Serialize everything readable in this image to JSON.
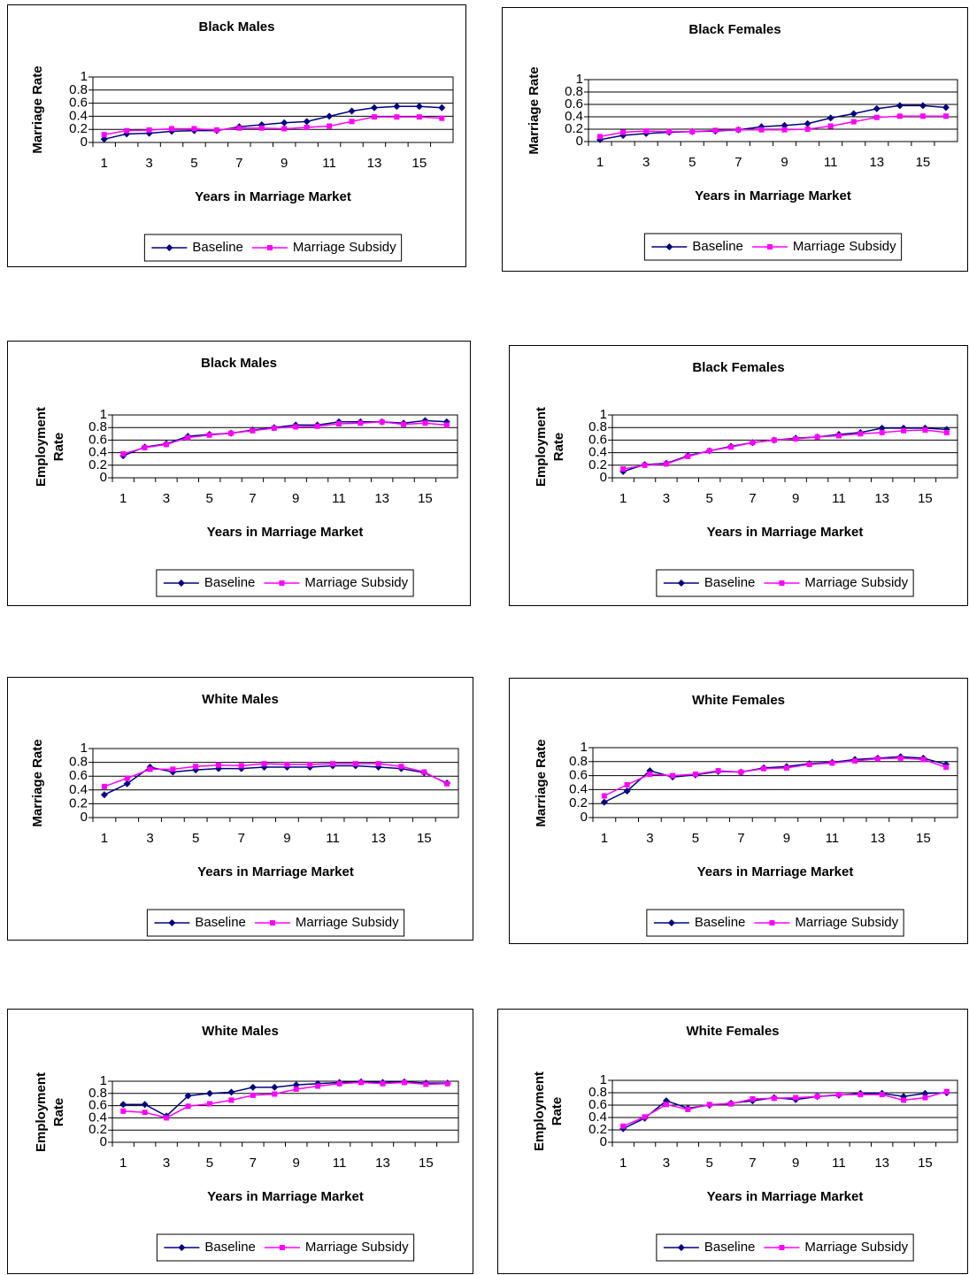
{
  "chart_data": [
    {
      "type": "line",
      "title": "Black Males",
      "ylabel": "Marriage Rate",
      "xlabel": "Years in Marriage Market",
      "categories": [
        "1",
        null,
        "3",
        null,
        "5",
        null,
        "7",
        null,
        "9",
        null,
        "11",
        null,
        "13",
        null,
        "15",
        null
      ],
      "series": [
        {
          "name": "Baseline",
          "color": "#000080",
          "marker": "diamond",
          "values": [
            0.05,
            0.13,
            0.14,
            0.17,
            0.18,
            0.18,
            0.24,
            0.27,
            0.3,
            0.32,
            0.4,
            0.48,
            0.53,
            0.55,
            0.55,
            0.53
          ]
        },
        {
          "name": "Marriage Subsidy",
          "color": "#ff00ff",
          "marker": "square",
          "values": [
            0.12,
            0.18,
            0.19,
            0.21,
            0.21,
            0.19,
            0.22,
            0.22,
            0.21,
            0.23,
            0.25,
            0.32,
            0.39,
            0.39,
            0.39,
            0.37
          ]
        }
      ],
      "ylim": [
        0,
        1
      ],
      "yticks": [
        0,
        0.2,
        0.4,
        0.6,
        0.8,
        1
      ],
      "grid": true
    },
    {
      "type": "line",
      "title": "Black Females",
      "ylabel": "Marriage Rate",
      "xlabel": "Years in Marriage Market",
      "categories": [
        "1",
        null,
        "3",
        null,
        "5",
        null,
        "7",
        null,
        "9",
        null,
        "11",
        null,
        "13",
        null,
        "15",
        null
      ],
      "series": [
        {
          "name": "Baseline",
          "color": "#000080",
          "marker": "diamond",
          "values": [
            0.03,
            0.1,
            0.13,
            0.15,
            0.16,
            0.17,
            0.19,
            0.24,
            0.26,
            0.29,
            0.38,
            0.45,
            0.53,
            0.58,
            0.58,
            0.55
          ]
        },
        {
          "name": "Marriage Subsidy",
          "color": "#ff00ff",
          "marker": "square",
          "values": [
            0.08,
            0.15,
            0.17,
            0.16,
            0.16,
            0.18,
            0.19,
            0.19,
            0.19,
            0.2,
            0.25,
            0.32,
            0.39,
            0.41,
            0.41,
            0.41
          ]
        }
      ],
      "ylim": [
        0,
        1
      ],
      "yticks": [
        0,
        0.2,
        0.4,
        0.6,
        0.8,
        1
      ],
      "grid": true
    },
    {
      "type": "line",
      "title": "Black Males",
      "ylabel": "Employment Rate",
      "xlabel": "Years in Marriage Market",
      "categories": [
        "1",
        null,
        "3",
        null,
        "5",
        null,
        "7",
        null,
        "9",
        null,
        "11",
        null,
        "13",
        null,
        "15",
        null
      ],
      "series": [
        {
          "name": "Baseline",
          "color": "#000080",
          "marker": "diamond",
          "values": [
            0.35,
            0.49,
            0.54,
            0.66,
            0.69,
            0.71,
            0.76,
            0.8,
            0.84,
            0.84,
            0.89,
            0.89,
            0.89,
            0.87,
            0.91,
            0.89
          ]
        },
        {
          "name": "Marriage Subsidy",
          "color": "#ff00ff",
          "marker": "square",
          "values": [
            0.38,
            0.48,
            0.53,
            0.64,
            0.68,
            0.71,
            0.75,
            0.79,
            0.81,
            0.82,
            0.86,
            0.87,
            0.89,
            0.85,
            0.87,
            0.84
          ]
        }
      ],
      "ylim": [
        0,
        1
      ],
      "yticks": [
        0,
        0.2,
        0.4,
        0.6,
        0.8,
        1
      ],
      "grid": true
    },
    {
      "type": "line",
      "title": "Black Females",
      "ylabel": "Employment Rate",
      "xlabel": "Years in Marriage Market",
      "categories": [
        "1",
        null,
        "3",
        null,
        "5",
        null,
        "7",
        null,
        "9",
        null,
        "11",
        null,
        "13",
        null,
        "15",
        null
      ],
      "series": [
        {
          "name": "Baseline",
          "color": "#000080",
          "marker": "diamond",
          "values": [
            0.1,
            0.21,
            0.23,
            0.35,
            0.43,
            0.5,
            0.56,
            0.6,
            0.63,
            0.65,
            0.69,
            0.72,
            0.79,
            0.79,
            0.79,
            0.77
          ]
        },
        {
          "name": "Marriage Subsidy",
          "color": "#ff00ff",
          "marker": "square",
          "values": [
            0.14,
            0.2,
            0.22,
            0.34,
            0.43,
            0.49,
            0.56,
            0.6,
            0.62,
            0.65,
            0.67,
            0.7,
            0.72,
            0.75,
            0.76,
            0.72
          ]
        }
      ],
      "ylim": [
        0,
        1
      ],
      "yticks": [
        0,
        0.2,
        0.4,
        0.6,
        0.8,
        1
      ],
      "grid": true
    },
    {
      "type": "line",
      "title": "White Males",
      "ylabel": "Marriage Rate",
      "xlabel": "Years in Marriage Market",
      "categories": [
        "1",
        null,
        "3",
        null,
        "5",
        null,
        "7",
        null,
        "9",
        null,
        "11",
        null,
        "13",
        null,
        "15",
        null
      ],
      "series": [
        {
          "name": "Baseline",
          "color": "#000080",
          "marker": "diamond",
          "values": [
            0.33,
            0.49,
            0.73,
            0.66,
            0.69,
            0.71,
            0.71,
            0.73,
            0.73,
            0.73,
            0.75,
            0.75,
            0.73,
            0.71,
            0.65,
            0.5
          ]
        },
        {
          "name": "Marriage Subsidy",
          "color": "#ff00ff",
          "marker": "square",
          "values": [
            0.45,
            0.57,
            0.7,
            0.7,
            0.74,
            0.76,
            0.75,
            0.78,
            0.77,
            0.77,
            0.78,
            0.78,
            0.78,
            0.74,
            0.66,
            0.49
          ]
        }
      ],
      "ylim": [
        0,
        1
      ],
      "yticks": [
        0,
        0.2,
        0.4,
        0.6,
        0.8,
        1
      ],
      "grid": true
    },
    {
      "type": "line",
      "title": "White Females",
      "ylabel": "Marriage Rate",
      "xlabel": "Years in Marriage Market",
      "categories": [
        "1",
        null,
        "3",
        null,
        "5",
        null,
        "7",
        null,
        "9",
        null,
        "11",
        null,
        "13",
        null,
        "15",
        null
      ],
      "series": [
        {
          "name": "Baseline",
          "color": "#000080",
          "marker": "diamond",
          "values": [
            0.22,
            0.38,
            0.67,
            0.58,
            0.61,
            0.66,
            0.65,
            0.71,
            0.73,
            0.77,
            0.79,
            0.83,
            0.85,
            0.87,
            0.85,
            0.76
          ]
        },
        {
          "name": "Marriage Subsidy",
          "color": "#ff00ff",
          "marker": "square",
          "values": [
            0.31,
            0.47,
            0.62,
            0.6,
            0.62,
            0.67,
            0.65,
            0.7,
            0.71,
            0.76,
            0.78,
            0.81,
            0.84,
            0.85,
            0.83,
            0.72
          ]
        }
      ],
      "ylim": [
        0,
        1
      ],
      "yticks": [
        0,
        0.2,
        0.4,
        0.6,
        0.8,
        1
      ],
      "grid": true
    },
    {
      "type": "line",
      "title": "White Males",
      "ylabel": "Employment Rate",
      "xlabel": "Years in Marriage Market",
      "categories": [
        "1",
        null,
        "3",
        null,
        "5",
        null,
        "7",
        null,
        "9",
        null,
        "11",
        null,
        "13",
        null,
        "15",
        null
      ],
      "series": [
        {
          "name": "Baseline",
          "color": "#000080",
          "marker": "diamond",
          "values": [
            0.62,
            0.62,
            0.43,
            0.76,
            0.8,
            0.82,
            0.9,
            0.9,
            0.94,
            0.96,
            0.98,
            0.99,
            0.98,
            0.99,
            0.97,
            0.97
          ]
        },
        {
          "name": "Marriage Subsidy",
          "color": "#ff00ff",
          "marker": "square",
          "values": [
            0.51,
            0.49,
            0.4,
            0.59,
            0.63,
            0.69,
            0.77,
            0.79,
            0.87,
            0.92,
            0.96,
            0.98,
            0.96,
            0.98,
            0.95,
            0.96
          ]
        }
      ],
      "ylim": [
        0,
        1
      ],
      "yticks": [
        0,
        0.2,
        0.4,
        0.6,
        0.8,
        1
      ],
      "grid": true
    },
    {
      "type": "line",
      "title": "White Females",
      "ylabel": "Employment Rate",
      "xlabel": "Years in Marriage Market",
      "categories": [
        "1",
        null,
        "3",
        null,
        "5",
        null,
        "7",
        null,
        "9",
        null,
        "11",
        null,
        "13",
        null,
        "15",
        null
      ],
      "series": [
        {
          "name": "Baseline",
          "color": "#000080",
          "marker": "diamond",
          "values": [
            0.22,
            0.39,
            0.67,
            0.55,
            0.6,
            0.63,
            0.67,
            0.72,
            0.69,
            0.74,
            0.76,
            0.79,
            0.79,
            0.74,
            0.79,
            0.8
          ]
        },
        {
          "name": "Marriage Subsidy",
          "color": "#ff00ff",
          "marker": "square",
          "values": [
            0.26,
            0.41,
            0.61,
            0.53,
            0.61,
            0.62,
            0.7,
            0.71,
            0.72,
            0.74,
            0.77,
            0.77,
            0.77,
            0.68,
            0.72,
            0.82
          ]
        }
      ],
      "ylim": [
        0,
        1
      ],
      "yticks": [
        0,
        0.2,
        0.4,
        0.6,
        0.8,
        1
      ],
      "grid": true
    }
  ]
}
